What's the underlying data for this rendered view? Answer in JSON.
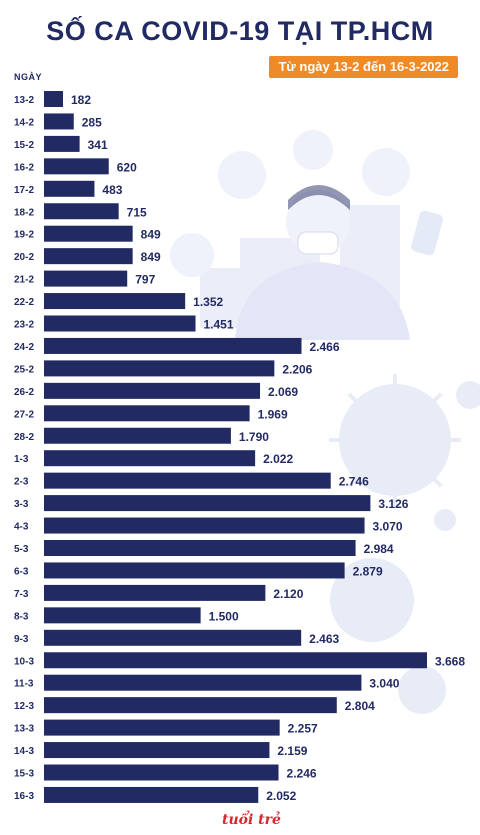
{
  "header": {
    "title": "SỐ CA COVID-19 TẠI TP.HCM",
    "subtitle": "Từ ngày 13-2 đến 16-3-2022"
  },
  "logo_text": "tuổi trẻ",
  "colors": {
    "bar": "#222a63",
    "accent": "#f08a24",
    "text": "#222a63",
    "illustration": "#dfe4f5"
  },
  "chart_data": {
    "type": "bar",
    "orientation": "horizontal",
    "title": "SỐ CA COVID-19 TẠI TP.HCM",
    "subtitle": "Từ ngày 13-2 đến 16-3-2022",
    "ylabel": "NGÀY",
    "xlabel": "",
    "categories": [
      "13-2",
      "14-2",
      "15-2",
      "16-2",
      "17-2",
      "18-2",
      "19-2",
      "20-2",
      "21-2",
      "22-2",
      "23-2",
      "24-2",
      "25-2",
      "26-2",
      "27-2",
      "28-2",
      "1-3",
      "2-3",
      "3-3",
      "4-3",
      "5-3",
      "6-3",
      "7-3",
      "8-3",
      "9-3",
      "10-3",
      "11-3",
      "12-3",
      "13-3",
      "14-3",
      "15-3",
      "16-3"
    ],
    "values": [
      182,
      285,
      341,
      620,
      483,
      715,
      849,
      849,
      797,
      1352,
      1451,
      2466,
      2206,
      2069,
      1969,
      1790,
      2022,
      2746,
      3126,
      3070,
      2984,
      2879,
      2120,
      1500,
      2463,
      3668,
      3040,
      2804,
      2257,
      2159,
      2246,
      2052
    ],
    "value_labels": [
      "182",
      "285",
      "341",
      "620",
      "483",
      "715",
      "849",
      "849",
      "797",
      "1.352",
      "1.451",
      "2.466",
      "2.206",
      "2.069",
      "1.969",
      "1.790",
      "2.022",
      "2.746",
      "3.126",
      "3.070",
      "2.984",
      "2.879",
      "2.120",
      "1.500",
      "2.463",
      "3.668",
      "3.040",
      "2.804",
      "2.257",
      "2.159",
      "2.246",
      "2.052"
    ],
    "grid": false,
    "legend": "none"
  }
}
